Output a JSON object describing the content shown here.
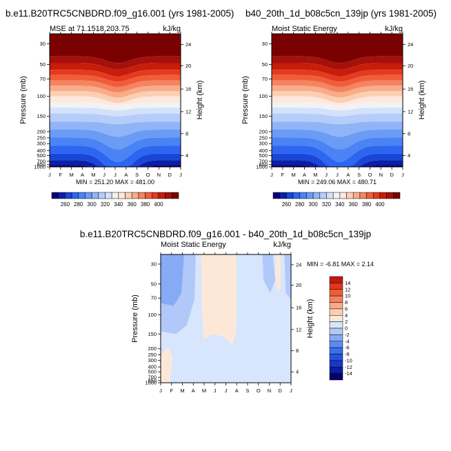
{
  "chart_data": [
    {
      "type": "heatmap",
      "title": "b.e11.B20TRC5CNBDRD.f09_g16.001 (yrs 1981-2005)",
      "left_label": "MSE at 71.1518,203.75",
      "right_label": "kJ/kg",
      "ylabel": "Pressure (mb)",
      "ylabel_right": "Height (km)",
      "x_ticks": [
        "J",
        "F",
        "M",
        "A",
        "M",
        "J",
        "J",
        "A",
        "S",
        "O",
        "N",
        "D",
        "J"
      ],
      "y_ticks": [
        "30",
        "50",
        "70",
        "100",
        "150",
        "200",
        "250",
        "300",
        "400",
        "500",
        "700",
        "850",
        "1000"
      ],
      "y_right_ticks": [
        "24",
        "20",
        "16",
        "12",
        "8",
        "4"
      ],
      "stats": "MIN = 251.20   MAX = 481.00",
      "colorbar_labels": [
        "260",
        "280",
        "300",
        "320",
        "340",
        "360",
        "380",
        "400"
      ]
    },
    {
      "type": "heatmap",
      "title": "b40_20th_1d_b08c5cn_139jp (yrs 1981-2005)",
      "left_label": "Moist Static Energy",
      "right_label": "kJ/kg",
      "ylabel": "Pressure (mb)",
      "ylabel_right": "Height (km)",
      "x_ticks": [
        "J",
        "F",
        "M",
        "A",
        "M",
        "J",
        "J",
        "A",
        "S",
        "O",
        "N",
        "D",
        "J"
      ],
      "y_ticks": [
        "30",
        "50",
        "70",
        "100",
        "150",
        "200",
        "250",
        "300",
        "400",
        "500",
        "700",
        "850",
        "1000"
      ],
      "y_right_ticks": [
        "24",
        "20",
        "16",
        "12",
        "8",
        "4"
      ],
      "stats": "MIN = 249.06   MAX = 480.71",
      "colorbar_labels": [
        "260",
        "280",
        "300",
        "320",
        "340",
        "360",
        "380",
        "400"
      ]
    },
    {
      "type": "heatmap",
      "title": "b.e11.B20TRC5CNBDRD.f09_g16.001 - b40_20th_1d_b08c5cn_139jp",
      "left_label": "Moist Static Energy",
      "right_label": "kJ/kg",
      "ylabel": "Pressure (mb)",
      "ylabel_right": "Height (km)",
      "x_ticks": [
        "J",
        "F",
        "M",
        "A",
        "M",
        "J",
        "J",
        "A",
        "S",
        "O",
        "N",
        "D",
        "J"
      ],
      "y_ticks": [
        "30",
        "50",
        "70",
        "100",
        "150",
        "200",
        "250",
        "300",
        "400",
        "500",
        "700",
        "850",
        "1000"
      ],
      "y_right_ticks": [
        "24",
        "20",
        "16",
        "12",
        "8",
        "4"
      ],
      "stats": "MIN =  -6.81   MAX =   2.14",
      "colorbar_labels": [
        "14",
        "12",
        "10",
        "8",
        "6",
        "4",
        "2",
        "0",
        "-2",
        "-4",
        "-6",
        "-8",
        "-10",
        "-12",
        "-14"
      ]
    }
  ],
  "colors": {
    "abs_scale": [
      "#08007a",
      "#0a1fa8",
      "#1a45d6",
      "#2d66f0",
      "#4a83f4",
      "#6b9cf5",
      "#90b4f7",
      "#b6cdf9",
      "#d3e1fb",
      "#f2f2f2",
      "#fde8dc",
      "#fbcfb4",
      "#f8ac88",
      "#f58460",
      "#f05d3a",
      "#e43a1f",
      "#c71d0a",
      "#a5100a",
      "#7b0000"
    ],
    "diff_scale": [
      "#07006e",
      "#0b1ea3",
      "#1838c6",
      "#2653dd",
      "#3b6ee8",
      "#5b8bf0",
      "#86abf5",
      "#b1c9f9",
      "#d7e6fc",
      "#fde8d8",
      "#fccdb3",
      "#f9a987",
      "#f5815e",
      "#ef5a39",
      "#e0361f",
      "#bf1b0c"
    ]
  }
}
